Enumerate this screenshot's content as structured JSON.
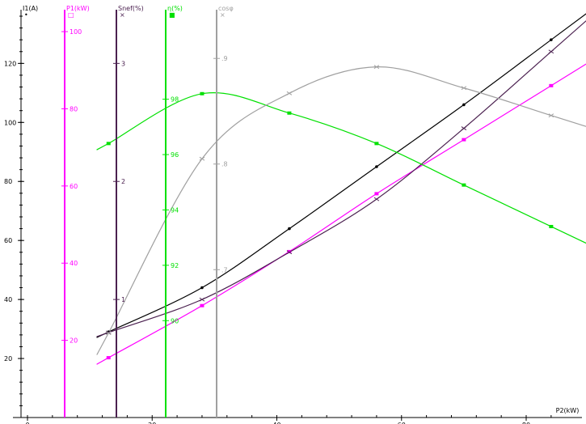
{
  "chart_data": {
    "type": "line",
    "x": {
      "label": "P2(kW)",
      "range": [
        0,
        87
      ],
      "ticks": [
        0,
        20,
        40,
        60,
        80
      ],
      "tick_labels": [
        "0",
        "20",
        "40",
        "60",
        "80"
      ]
    },
    "axes": [
      {
        "key": "I1",
        "label": "I1(A)",
        "color": "#000000",
        "range": [
          0,
          136
        ],
        "ticks": [
          20,
          40,
          60,
          80,
          100,
          120
        ],
        "labels": [
          "20",
          "40",
          "60",
          "80",
          "100",
          "120"
        ],
        "marker_glyph": "•"
      },
      {
        "key": "P1",
        "label": "P1(kW)",
        "color": "#ff00ff",
        "range": [
          0,
          104
        ],
        "ticks": [
          20,
          40,
          60,
          80,
          100
        ],
        "labels": [
          "20",
          "40",
          "60",
          "80",
          "100"
        ],
        "marker_glyph": "□"
      },
      {
        "key": "Slip",
        "label": "Snef(%)",
        "color": "#4b2150",
        "range": [
          0,
          3.4
        ],
        "ticks": [
          1,
          2,
          3
        ],
        "labels": [
          "1",
          "2",
          "3"
        ],
        "marker_glyph": "×"
      },
      {
        "key": "eta",
        "label": "η(%)",
        "color": "#00e000",
        "range": [
          86.5,
          101
        ],
        "ticks": [
          90,
          92,
          94,
          96,
          98
        ],
        "labels": [
          "90",
          "92",
          "94",
          "96",
          "98"
        ],
        "marker_glyph": "■"
      },
      {
        "key": "cosphi",
        "label": "cosφ",
        "color": "#a0a0a0",
        "range": [
          0.56,
          0.94
        ],
        "ticks": [
          0.7,
          0.8,
          0.9
        ],
        "labels": [
          ".7",
          ".8",
          ".9"
        ],
        "marker_glyph": "×"
      }
    ],
    "series": [
      {
        "axis": "I1",
        "color": "#000000",
        "marker": "dot",
        "x": [
          13,
          28,
          42,
          56,
          70,
          84
        ],
        "y": [
          29,
          44,
          64,
          85,
          106,
          128
        ]
      },
      {
        "axis": "P1",
        "color": "#ff00ff",
        "marker": "square",
        "x": [
          13,
          28,
          42,
          56,
          70,
          84
        ],
        "y": [
          15.5,
          29,
          43,
          58,
          72,
          86
        ]
      },
      {
        "axis": "Slip",
        "color": "#4b2150",
        "marker": "x",
        "x": [
          13,
          28,
          42,
          56,
          70,
          84
        ],
        "y": [
          0.72,
          1.0,
          1.4,
          1.85,
          2.45,
          3.1
        ]
      },
      {
        "axis": "eta",
        "color": "#00e000",
        "marker": "square",
        "x": [
          13,
          28,
          42,
          56,
          70,
          84
        ],
        "y": [
          96.4,
          98.2,
          97.5,
          96.4,
          94.9,
          93.4
        ]
      },
      {
        "axis": "cosphi",
        "color": "#a0a0a0",
        "marker": "x",
        "x": [
          13,
          28,
          42,
          56,
          70,
          84
        ],
        "y": [
          0.64,
          0.805,
          0.867,
          0.892,
          0.872,
          0.846
        ]
      }
    ],
    "grid": false,
    "legend": "none"
  }
}
